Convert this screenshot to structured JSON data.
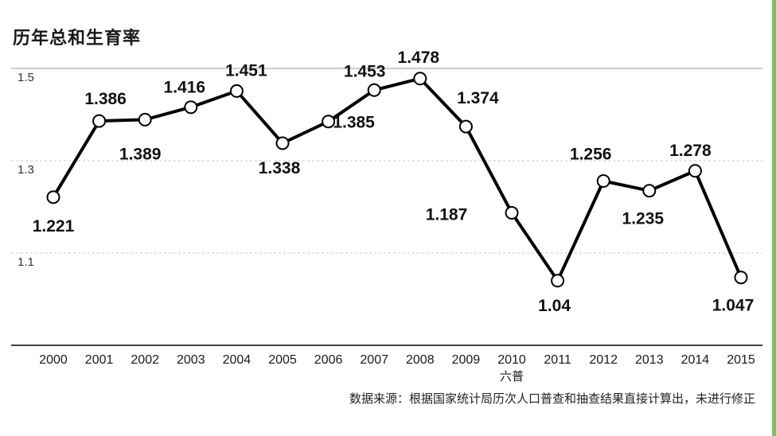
{
  "title": "历年总和生育率",
  "source": "数据来源：根据国家统计局历次人口普查和抽查结果直接计算出，未进行修正",
  "colors": {
    "line": "#000000",
    "marker_fill": "#ffffff",
    "grid": "#c8c8c8",
    "accent_edge": "#7cc06a"
  },
  "chart_data": {
    "type": "line",
    "title": "历年总和生育率",
    "xlabel": "",
    "ylabel": "",
    "ylim": [
      0.92,
      1.5
    ],
    "yticks": [
      "1.5",
      "1.3",
      "1.1"
    ],
    "grid": true,
    "categories": [
      "2000",
      "2001",
      "2002",
      "2003",
      "2004",
      "2005",
      "2006",
      "2007",
      "2008",
      "2009",
      "2010",
      "2011",
      "2012",
      "2013",
      "2014",
      "2015"
    ],
    "category_sublabels": {
      "2010": "六普"
    },
    "series": [
      {
        "values": [
          1.221,
          1.386,
          1.389,
          1.416,
          1.451,
          1.338,
          1.385,
          1.453,
          1.478,
          1.374,
          1.187,
          1.04,
          1.256,
          1.235,
          1.278,
          1.047
        ],
        "labels": [
          "1.221",
          "1.386",
          "1.389",
          "1.416",
          "1.451",
          "1.338",
          "1.385",
          "1.453",
          "1.478",
          "1.374",
          "1.187",
          "1.04",
          "1.256",
          "1.235",
          "1.278",
          "1.047"
        ]
      }
    ]
  }
}
